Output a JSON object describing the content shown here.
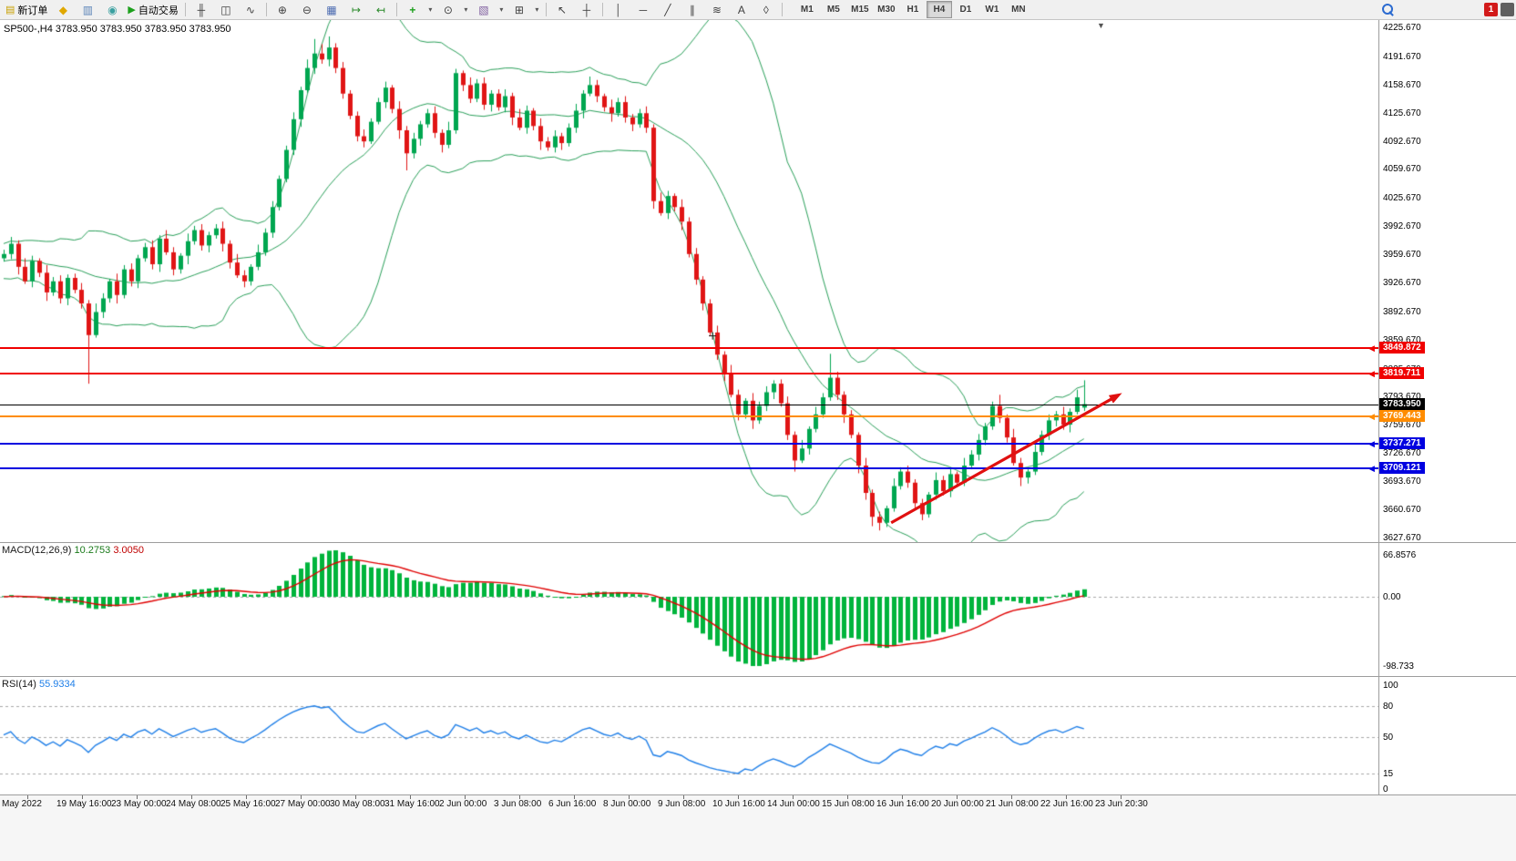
{
  "toolbar": {
    "notification_count": "1",
    "timeframes": [
      "M1",
      "M5",
      "M15",
      "M30",
      "H1",
      "H4",
      "D1",
      "W1",
      "MN"
    ],
    "active_timeframe": "H4",
    "buttons": [
      {
        "type": "text",
        "name": "new-order-button",
        "glyph": "▤",
        "color": "#c8a000",
        "label": "新订单"
      },
      {
        "type": "icon",
        "name": "metaeditor-icon-button",
        "glyph": "◆",
        "color": "#e0a800"
      },
      {
        "type": "icon",
        "name": "market-watch-icon-button",
        "glyph": "▥",
        "color": "#5b84b8"
      },
      {
        "type": "icon",
        "name": "mql5-community-icon-button",
        "glyph": "◉",
        "color": "#3aa0a0"
      },
      {
        "type": "text",
        "name": "auto-trading-button",
        "glyph": "▶",
        "color": "#1ca01c",
        "label": "自动交易"
      },
      {
        "type": "sep"
      },
      {
        "type": "icon",
        "name": "bar-chart-button",
        "glyph": "╫",
        "color": "#404040"
      },
      {
        "type": "icon",
        "name": "candlestick-chart-button",
        "glyph": "◫",
        "color": "#404040"
      },
      {
        "type": "icon",
        "name": "line-chart-button",
        "glyph": "∿",
        "color": "#404040"
      },
      {
        "type": "sep"
      },
      {
        "type": "icon",
        "name": "zoom-in-button",
        "glyph": "⊕",
        "color": "#404040"
      },
      {
        "type": "icon",
        "name": "zoom-out-button",
        "glyph": "⊖",
        "color": "#404040"
      },
      {
        "type": "icon",
        "name": "tile-windows-button",
        "glyph": "▦",
        "color": "#4a6ab0"
      },
      {
        "type": "icon",
        "name": "auto-scroll-button",
        "glyph": "↦",
        "color": "#2a8a2a"
      },
      {
        "type": "icon",
        "name": "chart-shift-button",
        "glyph": "↤",
        "color": "#2a8a2a"
      },
      {
        "type": "sep"
      },
      {
        "type": "icon",
        "name": "indicators-button",
        "glyph": "+",
        "color": "#1ca01c"
      },
      {
        "type": "dropdown",
        "name": "indicators-dropdown",
        "glyph": "▾"
      },
      {
        "type": "icon",
        "name": "periods-button",
        "glyph": "⊙",
        "color": "#404040"
      },
      {
        "type": "dropdown",
        "name": "periods-dropdown",
        "glyph": "▾"
      },
      {
        "type": "icon",
        "name": "templates-button",
        "glyph": "▧",
        "color": "#8060a0"
      },
      {
        "type": "dropdown",
        "name": "templates-dropdown",
        "glyph": "▾"
      },
      {
        "type": "icon",
        "name": "new-chart-button",
        "glyph": "⊞",
        "color": "#404040"
      },
      {
        "type": "dropdown",
        "name": "new-chart-dropdown",
        "glyph": "▾"
      },
      {
        "type": "sep"
      },
      {
        "type": "icon",
        "name": "cursor-button",
        "glyph": "↖",
        "color": "#404040"
      },
      {
        "type": "icon",
        "name": "crosshair-button",
        "glyph": "┼",
        "color": "#404040"
      },
      {
        "type": "sep"
      },
      {
        "type": "icon",
        "name": "vertical-line-button",
        "glyph": "│",
        "color": "#404040"
      },
      {
        "type": "icon",
        "name": "horizontal-line-button",
        "glyph": "─",
        "color": "#404040"
      },
      {
        "type": "icon",
        "name": "trendline-button",
        "glyph": "╱",
        "color": "#404040"
      },
      {
        "type": "icon",
        "name": "channel-button",
        "glyph": "∥",
        "color": "#404040"
      },
      {
        "type": "icon",
        "name": "fibonacci-button",
        "glyph": "≋",
        "color": "#404040"
      },
      {
        "type": "icon",
        "name": "text-button",
        "glyph": "A",
        "color": "#404040"
      },
      {
        "type": "icon",
        "name": "label-button",
        "glyph": "◊",
        "color": "#404040"
      },
      {
        "type": "sep"
      }
    ]
  },
  "chart": {
    "title_line": "SP500-,H4  3783.950 3783.950 3783.950 3783.950",
    "symbol": "SP500-",
    "period": "H4"
  },
  "chart_data": {
    "type": "candlestick",
    "title": "SP500- H4",
    "timeframe": "H4",
    "price_range": {
      "top": 4225.67,
      "bottom": 3627.67
    },
    "price_axis_labels": [
      "4225.670",
      "4191.670",
      "4158.670",
      "4125.670",
      "4092.670",
      "4059.670",
      "4025.670",
      "3992.670",
      "3959.670",
      "3926.670",
      "3892.670",
      "3859.670",
      "3825.670",
      "3793.670",
      "3759.670",
      "3726.670",
      "3693.670",
      "3660.670",
      "3627.670"
    ],
    "time_labels": [
      "May 2022",
      "19 May 16:00",
      "23 May 00:00",
      "24 May 08:00",
      "25 May 16:00",
      "27 May 00:00",
      "30 May 08:00",
      "31 May 16:00",
      "2 Jun 00:00",
      "3 Jun 08:00",
      "6 Jun 16:00",
      "8 Jun 00:00",
      "9 Jun 08:00",
      "10 Jun 16:00",
      "14 Jun 00:00",
      "15 Jun 08:00",
      "16 Jun 16:00",
      "20 Jun 00:00",
      "21 Jun 08:00",
      "22 Jun 16:00",
      "23 Jun 20:30"
    ],
    "level_lines": [
      {
        "value": "3849.872",
        "price": 3849.872,
        "color": "#f00000",
        "width": 2,
        "arrow": true,
        "kind": "resistance"
      },
      {
        "value": "3819.711",
        "price": 3819.711,
        "color": "#f00000",
        "width": 2,
        "arrow": true,
        "kind": "resistance"
      },
      {
        "value": "3783.950",
        "price": 3783.95,
        "color": "#000000",
        "width": 1,
        "arrow": false,
        "kind": "current-price"
      },
      {
        "value": "3769.443",
        "price": 3769.443,
        "color": "#ff8c00",
        "width": 2,
        "arrow": true,
        "kind": "level"
      },
      {
        "value": "3737.271",
        "price": 3737.271,
        "color": "#0000e0",
        "width": 2,
        "arrow": true,
        "kind": "support"
      },
      {
        "value": "3709.121",
        "price": 3709.121,
        "color": "#0000e0",
        "width": 2,
        "arrow": true,
        "kind": "support"
      }
    ],
    "trend_arrow": {
      "from_index": 125.7,
      "from_price": 3645,
      "to_index": 158.4,
      "to_price": 3797,
      "color": "#e01010"
    },
    "plus_marker": {
      "index": 100.4,
      "price": 3864
    },
    "colors": {
      "up": "#00a650",
      "down": "#e01515",
      "bollinger": "#2aa05a",
      "macd_hist": "#00b43c",
      "macd_signal": "#e00000",
      "rsi_line": "#1f7fe8"
    },
    "indicators": {
      "bollinger": {
        "period": 20,
        "deviation": 2
      },
      "macd": {
        "label": "MACD(12,26,9)",
        "fast": 12,
        "slow": 26,
        "signal": 9,
        "value": "10.2753",
        "signal_value": "3.0050",
        "axis_max": "66.8576",
        "axis_zero": "0.00",
        "axis_min": "-98.733"
      },
      "rsi": {
        "label": "RSI(14)",
        "period": 14,
        "value": "55.9334",
        "axis_labels": [
          100,
          80,
          50,
          15,
          0
        ],
        "levels": [
          80,
          50,
          15
        ]
      }
    },
    "warmup_closes": [
      3952,
      3960,
      3945,
      3958,
      3950,
      3968,
      3955,
      3942,
      3962,
      3950,
      3938,
      3958,
      3970,
      3952,
      3940,
      3965,
      3948,
      3936,
      3955,
      3944,
      3960,
      3975,
      3952,
      3940,
      3950,
      3962,
      3946,
      3934,
      3952,
      3940,
      3958,
      3946,
      3968,
      3956,
      3952
    ],
    "candles": [
      [
        3955,
        3965,
        3951,
        3960
      ],
      [
        3960,
        3980,
        3954,
        3972
      ],
      [
        3972,
        3976,
        3936,
        3945
      ],
      [
        3945,
        3955,
        3925,
        3928
      ],
      [
        3928,
        3958,
        3921,
        3952
      ],
      [
        3952,
        3955,
        3933,
        3938
      ],
      [
        3938,
        3947,
        3905,
        3915
      ],
      [
        3915,
        3933,
        3911,
        3928
      ],
      [
        3928,
        3935,
        3902,
        3908
      ],
      [
        3908,
        3936,
        3900,
        3932
      ],
      [
        3932,
        3937,
        3914,
        3918
      ],
      [
        3918,
        3926,
        3896,
        3902
      ],
      [
        3902,
        3906,
        3808,
        3865
      ],
      [
        3865,
        3902,
        3862,
        3892
      ],
      [
        3892,
        3914,
        3885,
        3908
      ],
      [
        3908,
        3931,
        3903,
        3928
      ],
      [
        3928,
        3937,
        3902,
        3912
      ],
      [
        3912,
        3947,
        3908,
        3942
      ],
      [
        3942,
        3949,
        3922,
        3928
      ],
      [
        3928,
        3959,
        3920,
        3955
      ],
      [
        3955,
        3973,
        3951,
        3968
      ],
      [
        3968,
        3976,
        3942,
        3948
      ],
      [
        3948,
        3982,
        3939,
        3978
      ],
      [
        3978,
        3988,
        3959,
        3962
      ],
      [
        3962,
        3968,
        3935,
        3942
      ],
      [
        3942,
        3961,
        3937,
        3958
      ],
      [
        3958,
        3984,
        3948,
        3975
      ],
      [
        3975,
        3993,
        3971,
        3988
      ],
      [
        3988,
        3995,
        3964,
        3970
      ],
      [
        3970,
        3986,
        3962,
        3982
      ],
      [
        3982,
        3995,
        3978,
        3990
      ],
      [
        3990,
        3998,
        3963,
        3972
      ],
      [
        3972,
        3976,
        3943,
        3950
      ],
      [
        3950,
        3960,
        3932,
        3935
      ],
      [
        3935,
        3941,
        3921,
        3928
      ],
      [
        3928,
        3948,
        3923,
        3945
      ],
      [
        3945,
        3971,
        3941,
        3962
      ],
      [
        3962,
        3990,
        3958,
        3985
      ],
      [
        3985,
        4022,
        3979,
        4015
      ],
      [
        4015,
        4052,
        4011,
        4048
      ],
      [
        4048,
        4087,
        4044,
        4082
      ],
      [
        4082,
        4126,
        4076,
        4118
      ],
      [
        4118,
        4156,
        4109,
        4152
      ],
      [
        4152,
        4188,
        4149,
        4178
      ],
      [
        4178,
        4212,
        4171,
        4195
      ],
      [
        4195,
        4206,
        4183,
        4188
      ],
      [
        4188,
        4215,
        4180,
        4202
      ],
      [
        4202,
        4207,
        4172,
        4178
      ],
      [
        4178,
        4185,
        4142,
        4148
      ],
      [
        4148,
        4152,
        4118,
        4122
      ],
      [
        4122,
        4127,
        4092,
        4098
      ],
      [
        4098,
        4106,
        4085,
        4092
      ],
      [
        4092,
        4119,
        4089,
        4115
      ],
      [
        4115,
        4143,
        4112,
        4138
      ],
      [
        4138,
        4162,
        4131,
        4155
      ],
      [
        4155,
        4158,
        4125,
        4130
      ],
      [
        4130,
        4139,
        4095,
        4105
      ],
      [
        4105,
        4110,
        4058,
        4078
      ],
      [
        4078,
        4102,
        4072,
        4095
      ],
      [
        4095,
        4116,
        4087,
        4112
      ],
      [
        4112,
        4130,
        4108,
        4125
      ],
      [
        4125,
        4133,
        4096,
        4102
      ],
      [
        4102,
        4106,
        4079,
        4088
      ],
      [
        4088,
        4115,
        4084,
        4105
      ],
      [
        4105,
        4177,
        4101,
        4172
      ],
      [
        4172,
        4175,
        4151,
        4158
      ],
      [
        4158,
        4167,
        4137,
        4142
      ],
      [
        4142,
        4165,
        4138,
        4160
      ],
      [
        4160,
        4167,
        4129,
        4135
      ],
      [
        4135,
        4152,
        4127,
        4148
      ],
      [
        4148,
        4153,
        4128,
        4132
      ],
      [
        4132,
        4153,
        4126,
        4145
      ],
      [
        4145,
        4149,
        4111,
        4120
      ],
      [
        4120,
        4130,
        4105,
        4108
      ],
      [
        4108,
        4134,
        4101,
        4128
      ],
      [
        4128,
        4131,
        4105,
        4110
      ],
      [
        4110,
        4119,
        4082,
        4092
      ],
      [
        4092,
        4097,
        4081,
        4085
      ],
      [
        4085,
        4105,
        4079,
        4098
      ],
      [
        4098,
        4102,
        4082,
        4090
      ],
      [
        4090,
        4113,
        4086,
        4108
      ],
      [
        4108,
        4136,
        4102,
        4128
      ],
      [
        4128,
        4152,
        4119,
        4148
      ],
      [
        4148,
        4168,
        4145,
        4158
      ],
      [
        4158,
        4164,
        4138,
        4145
      ],
      [
        4145,
        4148,
        4127,
        4132
      ],
      [
        4132,
        4141,
        4115,
        4125
      ],
      [
        4125,
        4143,
        4121,
        4138
      ],
      [
        4138,
        4145,
        4114,
        4120
      ],
      [
        4120,
        4124,
        4104,
        4112
      ],
      [
        4112,
        4130,
        4108,
        4125
      ],
      [
        4125,
        4133,
        4102,
        4108
      ],
      [
        4108,
        4112,
        4013,
        4022
      ],
      [
        4022,
        4032,
        4005,
        4008
      ],
      [
        4008,
        4034,
        4001,
        4028
      ],
      [
        4028,
        4031,
        4010,
        4015
      ],
      [
        4015,
        4024,
        3988,
        3998
      ],
      [
        3998,
        4003,
        3956,
        3960
      ],
      [
        3960,
        3967,
        3924,
        3930
      ],
      [
        3930,
        3934,
        3894,
        3902
      ],
      [
        3902,
        3907,
        3864,
        3868
      ],
      [
        3868,
        3876,
        3836,
        3842
      ],
      [
        3842,
        3846,
        3811,
        3820
      ],
      [
        3820,
        3830,
        3792,
        3795
      ],
      [
        3795,
        3801,
        3765,
        3772
      ],
      [
        3772,
        3791,
        3767,
        3788
      ],
      [
        3788,
        3797,
        3755,
        3765
      ],
      [
        3765,
        3787,
        3761,
        3782
      ],
      [
        3782,
        3805,
        3776,
        3798
      ],
      [
        3798,
        3812,
        3790,
        3808
      ],
      [
        3808,
        3813,
        3781,
        3785
      ],
      [
        3785,
        3793,
        3742,
        3748
      ],
      [
        3748,
        3752,
        3705,
        3718
      ],
      [
        3718,
        3742,
        3715,
        3732
      ],
      [
        3732,
        3758,
        3725,
        3755
      ],
      [
        3755,
        3781,
        3751,
        3772
      ],
      [
        3772,
        3797,
        3768,
        3792
      ],
      [
        3792,
        3843,
        3788,
        3815
      ],
      [
        3815,
        3822,
        3789,
        3795
      ],
      [
        3795,
        3799,
        3762,
        3772
      ],
      [
        3772,
        3777,
        3744,
        3748
      ],
      [
        3748,
        3751,
        3703,
        3712
      ],
      [
        3712,
        3721,
        3672,
        3680
      ],
      [
        3680,
        3684,
        3641,
        3652
      ],
      [
        3652,
        3658,
        3636,
        3645
      ],
      [
        3645,
        3665,
        3640,
        3662
      ],
      [
        3662,
        3697,
        3658,
        3688
      ],
      [
        3688,
        3710,
        3684,
        3705
      ],
      [
        3705,
        3712,
        3686,
        3692
      ],
      [
        3692,
        3696,
        3660,
        3668
      ],
      [
        3668,
        3673,
        3648,
        3655
      ],
      [
        3655,
        3681,
        3651,
        3678
      ],
      [
        3678,
        3704,
        3672,
        3695
      ],
      [
        3695,
        3700,
        3677,
        3682
      ],
      [
        3682,
        3709,
        3675,
        3702
      ],
      [
        3702,
        3705,
        3687,
        3692
      ],
      [
        3692,
        3721,
        3688,
        3712
      ],
      [
        3712,
        3730,
        3708,
        3725
      ],
      [
        3725,
        3749,
        3718,
        3742
      ],
      [
        3742,
        3762,
        3736,
        3758
      ],
      [
        3758,
        3787,
        3754,
        3782
      ],
      [
        3782,
        3795,
        3762,
        3768
      ],
      [
        3768,
        3772,
        3739,
        3745
      ],
      [
        3745,
        3755,
        3712,
        3715
      ],
      [
        3715,
        3721,
        3688,
        3698
      ],
      [
        3698,
        3708,
        3691,
        3705
      ],
      [
        3705,
        3737,
        3701,
        3728
      ],
      [
        3728,
        3753,
        3724,
        3748
      ],
      [
        3748,
        3772,
        3742,
        3765
      ],
      [
        3765,
        3776,
        3758,
        3772
      ],
      [
        3772,
        3781,
        3754,
        3760
      ],
      [
        3760,
        3779,
        3751,
        3775
      ],
      [
        3775,
        3801,
        3772,
        3792
      ],
      [
        3780,
        3812,
        3776,
        3784
      ]
    ]
  }
}
